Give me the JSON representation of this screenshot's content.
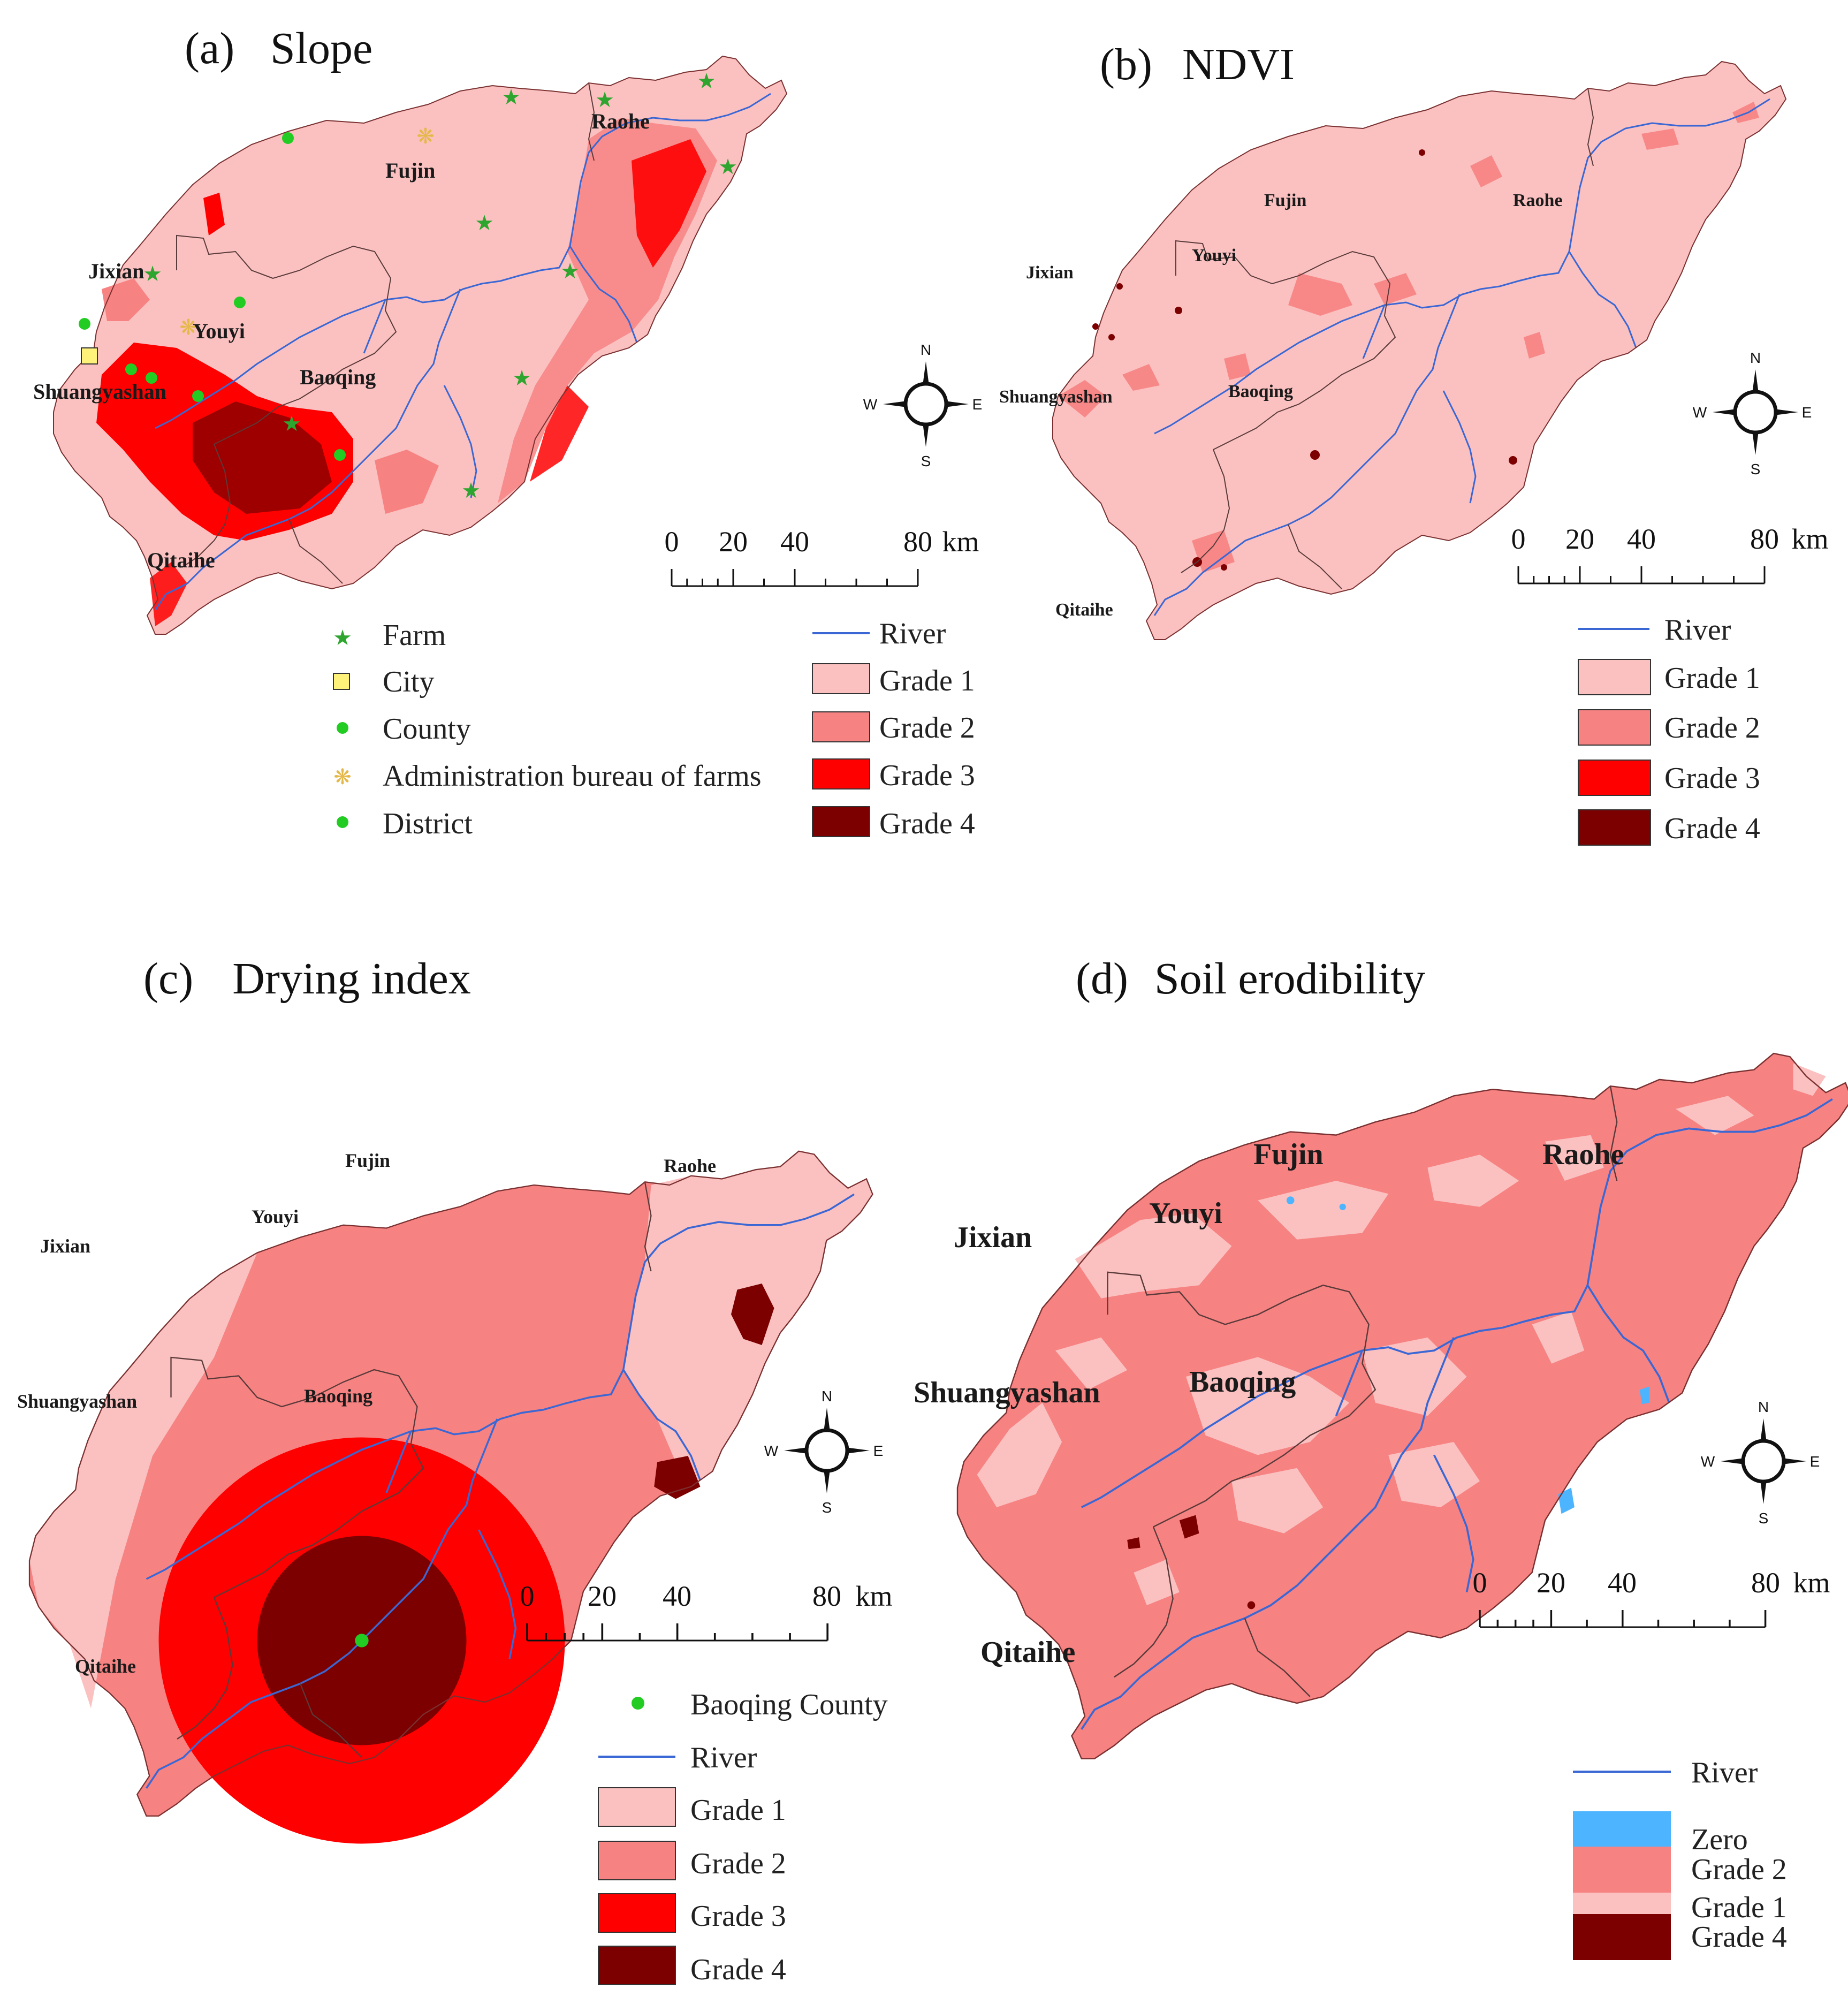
{
  "colors": {
    "grade1": "#fbc1c1",
    "grade2": "#f78282",
    "grade3": "#fe0000",
    "grade4": "#7d0000",
    "zero": "#4db4ff",
    "river": "#3a67d4",
    "farm": "#2ea52e",
    "city": "#fff27a",
    "county": "#22cc22",
    "district": "#22cc22",
    "bureau": "#f2d985",
    "boundary": "#5a3a3a"
  },
  "panels": {
    "a": {
      "label": "(a)",
      "title": "Slope",
      "places": {
        "fujin": "Fujin",
        "raohe": "Raohe",
        "jixian": "Jixian",
        "youyi": "Youyi",
        "baoqing": "Baoqing",
        "shuangyashan": "Shuangyashan",
        "qitaihe": "Qitaihe"
      },
      "scale": {
        "t0": "0",
        "t20": "20",
        "t40": "40",
        "t80": "80",
        "unit": "km"
      },
      "legend_left": {
        "farm": "Farm",
        "city": "City",
        "county": "County",
        "bureau": "Administration bureau of farms",
        "district": "District"
      },
      "legend_right": {
        "river": "River",
        "g1": "Grade 1",
        "g2": "Grade 2",
        "g3": "Grade 3",
        "g4": "Grade 4"
      }
    },
    "b": {
      "label": "(b)",
      "title": "NDVI",
      "places": {
        "fujin": "Fujin",
        "raohe": "Raohe",
        "jixian": "Jixian",
        "youyi": "Youyi",
        "baoqing": "Baoqing",
        "shuangyashan": "Shuangyashan",
        "qitaihe": "Qitaihe"
      },
      "scale": {
        "t0": "0",
        "t20": "20",
        "t40": "40",
        "t80": "80",
        "unit": "km"
      },
      "legend": {
        "river": "River",
        "g1": "Grade 1",
        "g2": "Grade 2",
        "g3": "Grade 3",
        "g4": "Grade 4"
      }
    },
    "c": {
      "label": "(c)",
      "title": "Drying index",
      "places": {
        "fujin": "Fujin",
        "raohe": "Raohe",
        "jixian": "Jixian",
        "youyi": "Youyi",
        "baoqing": "Baoqing",
        "shuangyashan": "Shuangyashan",
        "qitaihe": "Qitaihe"
      },
      "scale": {
        "t0": "0",
        "t20": "20",
        "t40": "40",
        "t80": "80",
        "unit": "km"
      },
      "legend": {
        "baoqing_county": "Baoqing County",
        "river": "River",
        "g1": "Grade 1",
        "g2": "Grade 2",
        "g3": "Grade 3",
        "g4": "Grade 4"
      }
    },
    "d": {
      "label": "(d)",
      "title": "Soil erodibility",
      "places": {
        "fujin": "Fujin",
        "raohe": "Raohe",
        "jixian": "Jixian",
        "youyi": "Youyi",
        "baoqing": "Baoqing",
        "shuangyashan": "Shuangyashan",
        "qitaihe": "Qitaihe"
      },
      "scale": {
        "t0": "0",
        "t20": "20",
        "t40": "40",
        "t80": "80",
        "unit": "km"
      },
      "legend": {
        "river": "River",
        "zero": "Zero",
        "g1": "Grade 1",
        "g2": "Grade 2",
        "g4": "Grade 4"
      }
    }
  },
  "compass": {
    "n": "N",
    "s": "S",
    "e": "E",
    "w": "W"
  }
}
